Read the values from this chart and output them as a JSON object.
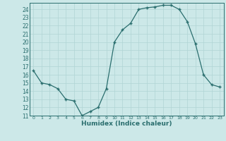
{
  "x": [
    0,
    1,
    2,
    3,
    4,
    5,
    6,
    7,
    8,
    9,
    10,
    11,
    12,
    13,
    14,
    15,
    16,
    17,
    18,
    19,
    20,
    21,
    22,
    23
  ],
  "y": [
    16.5,
    15.0,
    14.8,
    14.3,
    13.0,
    12.8,
    11.0,
    11.5,
    12.0,
    14.3,
    20.0,
    21.5,
    22.3,
    24.0,
    24.2,
    24.3,
    24.5,
    24.5,
    24.0,
    22.5,
    19.8,
    16.0,
    14.8,
    14.5
  ],
  "xlim": [
    -0.5,
    23.5
  ],
  "ylim": [
    11,
    24.8
  ],
  "yticks": [
    11,
    12,
    13,
    14,
    15,
    16,
    17,
    18,
    19,
    20,
    21,
    22,
    23,
    24
  ],
  "xticks": [
    0,
    1,
    2,
    3,
    4,
    5,
    6,
    7,
    8,
    9,
    10,
    11,
    12,
    13,
    14,
    15,
    16,
    17,
    18,
    19,
    20,
    21,
    22,
    23
  ],
  "xlabel": "Humidex (Indice chaleur)",
  "line_color": "#2a6e6e",
  "marker_color": "#2a6e6e",
  "bg_color": "#cce8e8",
  "grid_color": "#b0d4d4"
}
